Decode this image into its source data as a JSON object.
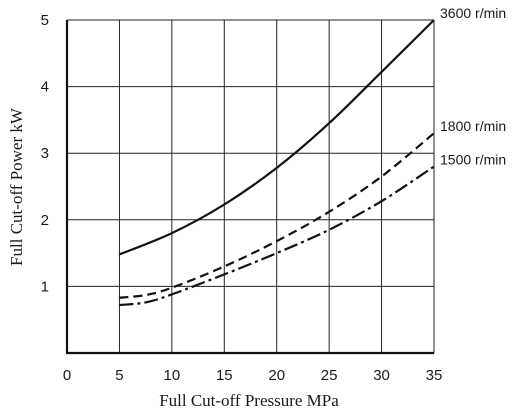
{
  "chart_data": {
    "type": "line",
    "title": "",
    "xlabel": "Full Cut-off  Pressure  MPa",
    "ylabel": "Full Cut-off Power  kW",
    "xlim": [
      0,
      35
    ],
    "ylim": [
      0,
      5
    ],
    "x_ticks": [
      "0",
      "5",
      "10",
      "15",
      "20",
      "25",
      "30",
      "35"
    ],
    "y_ticks": [
      "1",
      "2",
      "3",
      "4",
      "5"
    ],
    "grid": true,
    "series": [
      {
        "name": "3600 r/min",
        "style": "solid",
        "x": [
          5,
          10,
          15,
          20,
          25,
          30,
          35
        ],
        "y": [
          1.48,
          1.8,
          2.23,
          2.78,
          3.45,
          4.22,
          5.0
        ]
      },
      {
        "name": "1800 r/min",
        "style": "dashed",
        "x": [
          5,
          7.5,
          10,
          15,
          20,
          25,
          30,
          35
        ],
        "y": [
          0.83,
          0.87,
          0.98,
          1.3,
          1.68,
          2.12,
          2.65,
          3.3
        ]
      },
      {
        "name": "1500 r/min",
        "style": "dashdot",
        "x": [
          5,
          7.5,
          10,
          15,
          20,
          25,
          30,
          35
        ],
        "y": [
          0.72,
          0.76,
          0.88,
          1.18,
          1.5,
          1.85,
          2.28,
          2.8
        ]
      }
    ]
  }
}
